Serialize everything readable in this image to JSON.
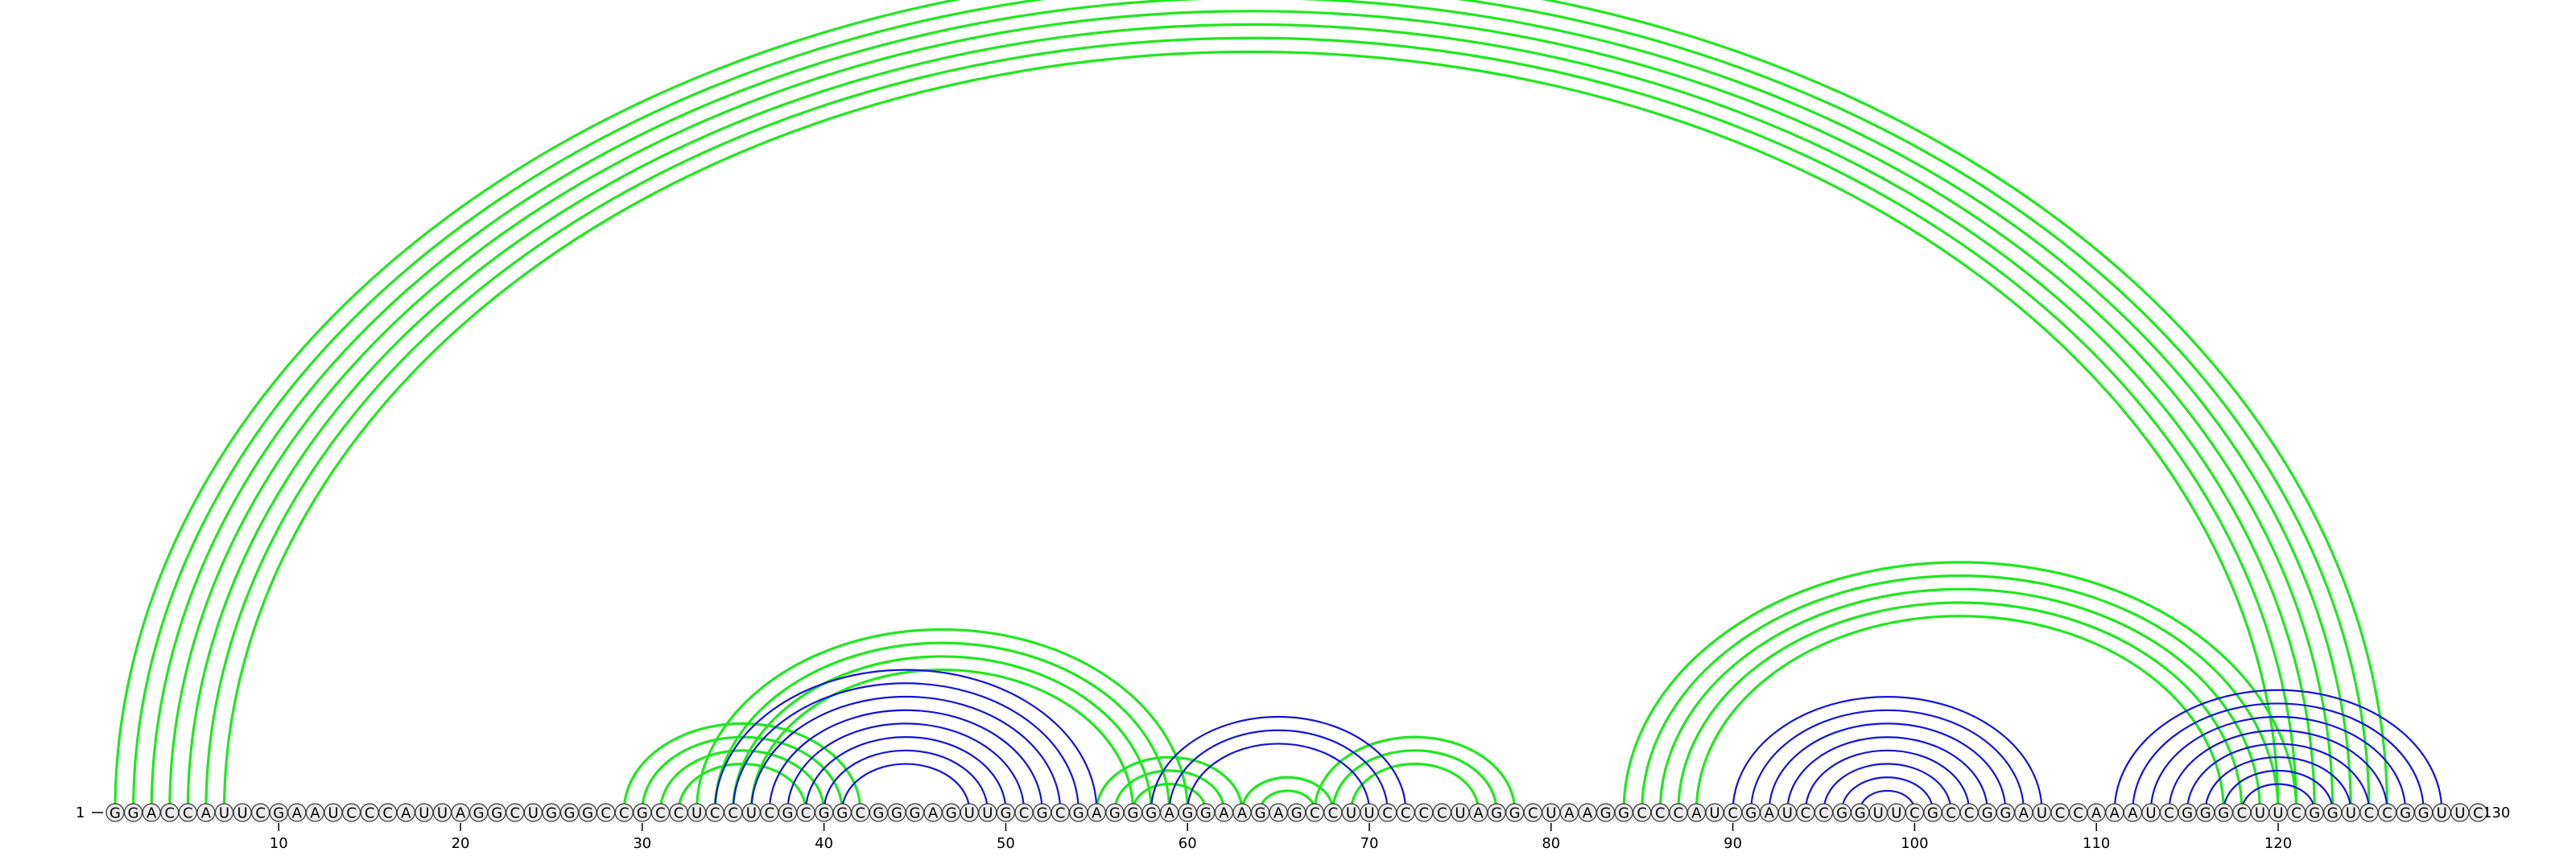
{
  "sequence": "GGACCAUUCGAAUCCCAUUAGGCUGGGCCGCCUCCUCGCGGCGGGAGUUGCGCGAGGGAGGAAGAGCCUUCCCCUAGGCUAAGGCCCAUCGAUCCGGUUCGCCGGAUCCAAAUCGGGCUUCGGUCCGGUUC",
  "start_label": "1",
  "end_label": "130",
  "ticks": [
    {
      "pos": 10,
      "label": "10"
    },
    {
      "pos": 20,
      "label": "20"
    },
    {
      "pos": 30,
      "label": "30"
    },
    {
      "pos": 40,
      "label": "40"
    },
    {
      "pos": 50,
      "label": "50"
    },
    {
      "pos": 60,
      "label": "60"
    },
    {
      "pos": 70,
      "label": "70"
    },
    {
      "pos": 80,
      "label": "80"
    },
    {
      "pos": 90,
      "label": "90"
    },
    {
      "pos": 100,
      "label": "100"
    },
    {
      "pos": 110,
      "label": "110"
    },
    {
      "pos": 120,
      "label": "120"
    }
  ],
  "colors": {
    "green": "#1ee81e",
    "blue": "#1414d6",
    "nucleotide_fill": "#ebebeb",
    "nucleotide_stroke": "#333333"
  },
  "arcs": {
    "green": [
      [
        1,
        126
      ],
      [
        2,
        125
      ],
      [
        3,
        124
      ],
      [
        4,
        123
      ],
      [
        5,
        122
      ],
      [
        6,
        121
      ],
      [
        7,
        120
      ],
      [
        29,
        42
      ],
      [
        30,
        41
      ],
      [
        31,
        40
      ],
      [
        32,
        39
      ],
      [
        33,
        60
      ],
      [
        34,
        59
      ],
      [
        35,
        58
      ],
      [
        36,
        57
      ],
      [
        55,
        63
      ],
      [
        56,
        62
      ],
      [
        57,
        61
      ],
      [
        63,
        68
      ],
      [
        64,
        67
      ],
      [
        67,
        78
      ],
      [
        68,
        77
      ],
      [
        69,
        76
      ],
      [
        84,
        121
      ],
      [
        85,
        120
      ],
      [
        86,
        119
      ],
      [
        87,
        118
      ],
      [
        88,
        117
      ]
    ],
    "blue": [
      [
        34,
        55
      ],
      [
        35,
        54
      ],
      [
        36,
        53
      ],
      [
        37,
        52
      ],
      [
        38,
        51
      ],
      [
        39,
        50
      ],
      [
        40,
        49
      ],
      [
        41,
        48
      ],
      [
        58,
        72
      ],
      [
        59,
        71
      ],
      [
        60,
        70
      ],
      [
        90,
        107
      ],
      [
        91,
        106
      ],
      [
        92,
        105
      ],
      [
        93,
        104
      ],
      [
        94,
        103
      ],
      [
        95,
        102
      ],
      [
        96,
        101
      ],
      [
        97,
        100
      ],
      [
        111,
        129
      ],
      [
        112,
        128
      ],
      [
        113,
        127
      ],
      [
        114,
        126
      ],
      [
        115,
        125
      ],
      [
        116,
        124
      ],
      [
        117,
        123
      ],
      [
        118,
        122
      ]
    ]
  }
}
